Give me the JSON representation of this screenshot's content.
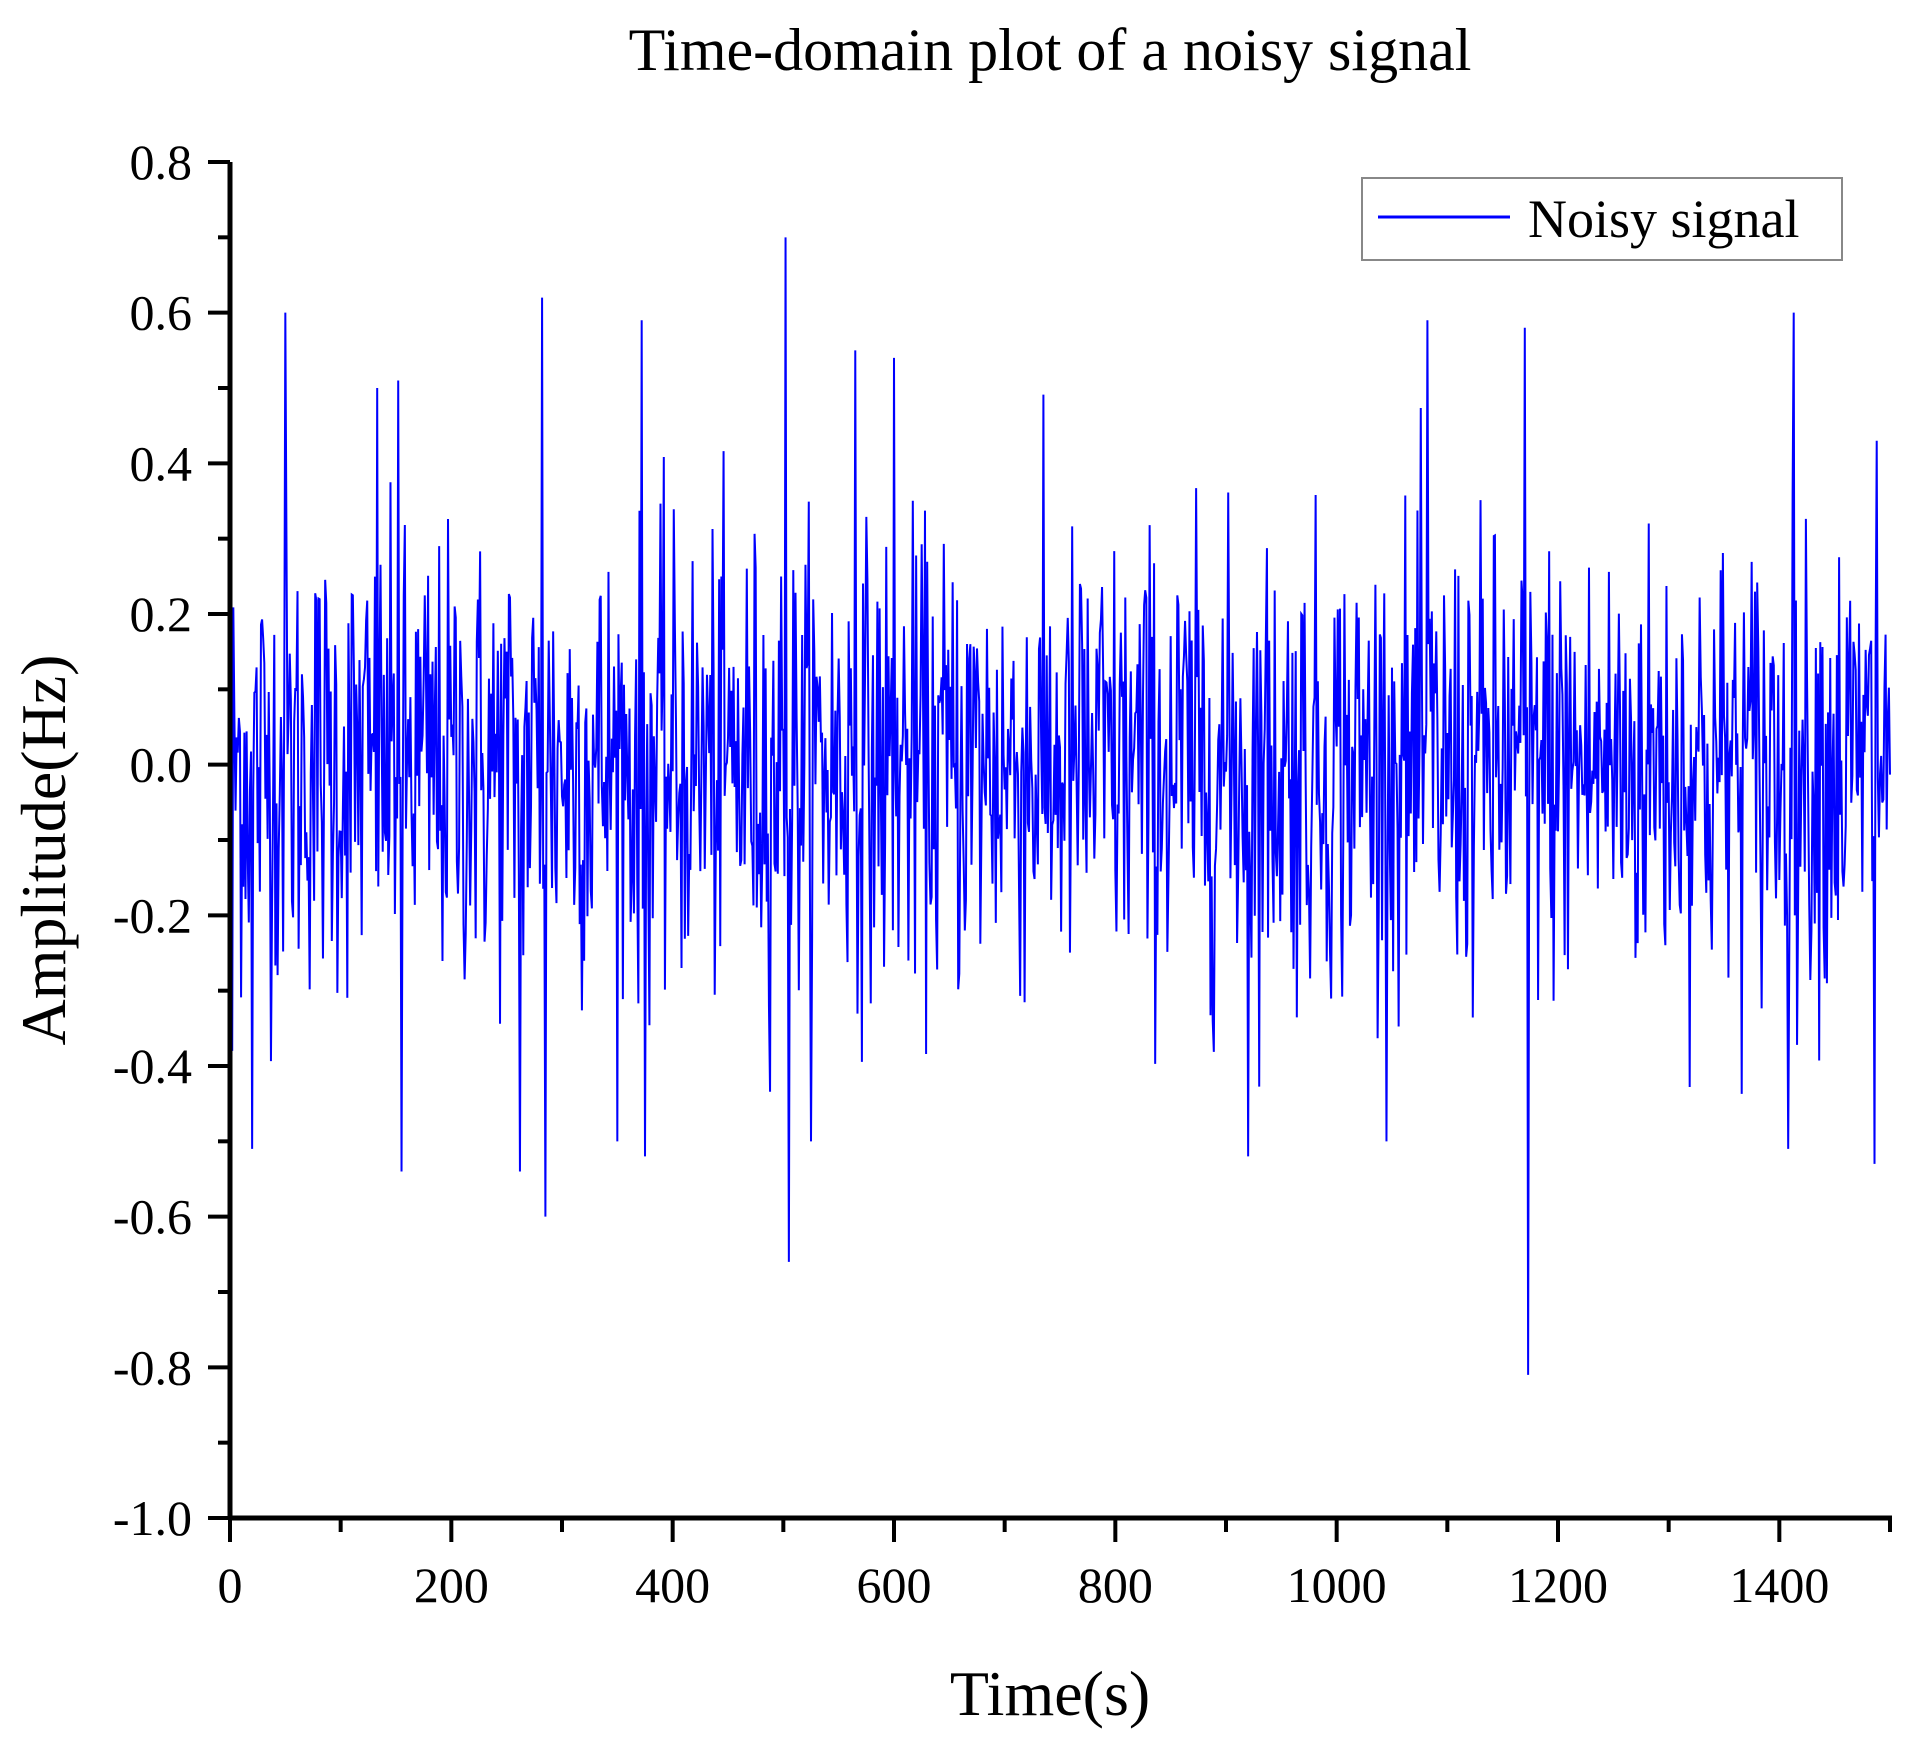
{
  "chart_data": {
    "type": "line",
    "title": "Time-domain plot of a noisy signal",
    "xlabel": "Time(s)",
    "ylabel": "Amplitude(Hz)",
    "xlim": [
      0,
      1500
    ],
    "ylim": [
      -1.0,
      0.8
    ],
    "xticks": [
      0,
      200,
      400,
      600,
      800,
      1000,
      1200,
      1400
    ],
    "xtick_labels": [
      "0",
      "200",
      "400",
      "600",
      "800",
      "1000",
      "1200",
      "1400"
    ],
    "yticks": [
      -1.0,
      -0.8,
      -0.6,
      -0.4,
      -0.2,
      0.0,
      0.2,
      0.4,
      0.6,
      0.8
    ],
    "ytick_labels": [
      "-1.0",
      "-0.8",
      "-0.6",
      "-0.4",
      "-0.2",
      "0.0",
      "0.2",
      "0.4",
      "0.6",
      "0.8"
    ],
    "grid": false,
    "legend": {
      "position": "top-right",
      "entries": [
        "Noisy signal"
      ]
    },
    "series": [
      {
        "name": "Noisy signal",
        "color": "#0000ff",
        "sampling": {
          "x_start": 0,
          "x_end": 1500,
          "points": 1501,
          "approx_std": 0.15
        },
        "peaks": [
          {
            "x": 0,
            "y": 0.37
          },
          {
            "x": 2,
            "y": -0.38
          },
          {
            "x": 20,
            "y": -0.51
          },
          {
            "x": 50,
            "y": 0.6
          },
          {
            "x": 133,
            "y": 0.5
          },
          {
            "x": 152,
            "y": 0.51
          },
          {
            "x": 155,
            "y": -0.54
          },
          {
            "x": 262,
            "y": -0.54
          },
          {
            "x": 282,
            "y": 0.62
          },
          {
            "x": 285,
            "y": -0.6
          },
          {
            "x": 372,
            "y": 0.59
          },
          {
            "x": 375,
            "y": -0.52
          },
          {
            "x": 502,
            "y": 0.7
          },
          {
            "x": 505,
            "y": -0.66
          },
          {
            "x": 565,
            "y": 0.55
          },
          {
            "x": 600,
            "y": 0.54
          },
          {
            "x": 920,
            "y": -0.52
          },
          {
            "x": 1082,
            "y": 0.59
          },
          {
            "x": 1170,
            "y": 0.58
          },
          {
            "x": 1173,
            "y": -0.81
          },
          {
            "x": 1413,
            "y": 0.6
          },
          {
            "x": 1408,
            "y": -0.51
          },
          {
            "x": 1486,
            "y": -0.53
          },
          {
            "x": 1488,
            "y": 0.43
          }
        ]
      }
    ]
  }
}
